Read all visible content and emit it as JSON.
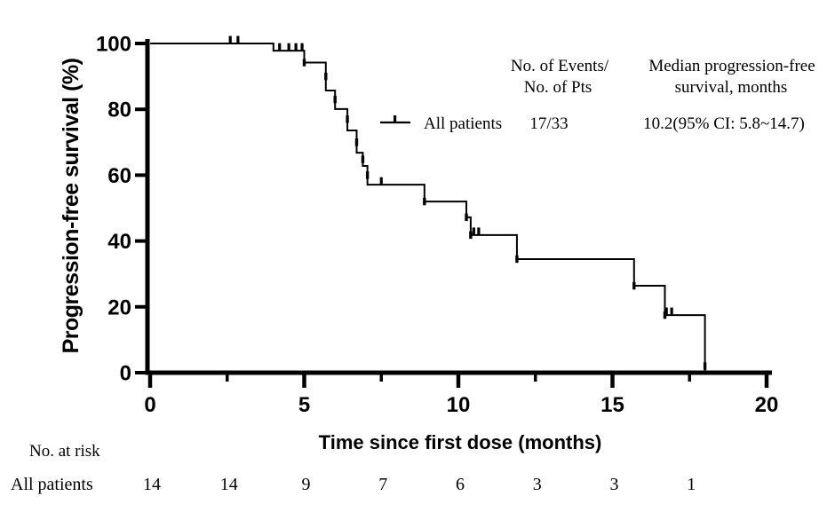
{
  "figure": {
    "background": "#ffffff",
    "ink": "#000000"
  },
  "y_axis": {
    "label": "Progression-free survival (%)",
    "ticks": [
      0,
      20,
      40,
      60,
      80,
      100
    ],
    "range": [
      0,
      100
    ]
  },
  "x_axis": {
    "label": "Time since first dose (months)",
    "ticks": [
      0,
      5,
      10,
      15,
      20
    ],
    "minor_ticks": [
      2.5,
      7.5,
      12.5,
      17.5
    ],
    "range": [
      0,
      20
    ]
  },
  "legend": {
    "col1_header_line1": "No. of Events/",
    "col1_header_line2": "No. of Pts",
    "col2_header_line1": "Median progression-free",
    "col2_header_line2": "survival, months",
    "series_label": "All patients",
    "events_over_pts": "17/33",
    "median_pfs": "10.2(95% CI: 5.8~14.7)"
  },
  "risk_table": {
    "title": "No. at risk",
    "row_label": "All patients",
    "times": [
      0,
      2.5,
      5,
      7.5,
      10,
      12.5,
      15,
      17.5
    ],
    "values": [
      "14",
      "14",
      "9",
      "7",
      "6",
      "3",
      "3",
      "1"
    ]
  },
  "chart_data": {
    "type": "line",
    "subtype": "kaplan-meier-step",
    "title": "",
    "xlabel": "Time since first dose (months)",
    "ylabel": "Progression-free survival (%)",
    "xlim": [
      0,
      20
    ],
    "ylim": [
      0,
      100
    ],
    "grid": false,
    "legend_position": "upper-right",
    "series": [
      {
        "name": "All patients",
        "events_over_pts": "17/33",
        "median_months": 10.2,
        "ci95": [
          5.8,
          14.7
        ],
        "km_steps": [
          [
            0,
            100
          ],
          [
            4.0,
            97.8
          ],
          [
            5.0,
            94.2
          ],
          [
            5.7,
            85.7
          ],
          [
            6.0,
            80.1
          ],
          [
            6.4,
            73.6
          ],
          [
            6.7,
            66.8
          ],
          [
            6.9,
            62.8
          ],
          [
            7.05,
            57.1
          ],
          [
            8.9,
            52.0
          ],
          [
            10.26,
            47.2
          ],
          [
            10.4,
            41.8
          ],
          [
            11.9,
            34.5
          ],
          [
            15.7,
            26.4
          ],
          [
            16.7,
            17.5
          ],
          [
            18.0,
            0
          ]
        ],
        "censor_ticks": [
          [
            2.6,
            100
          ],
          [
            2.85,
            100
          ],
          [
            4.2,
            97.8
          ],
          [
            4.5,
            97.8
          ],
          [
            4.73,
            97.8
          ],
          [
            4.93,
            97.8
          ],
          [
            7.5,
            57.1
          ],
          [
            10.5,
            41.8
          ],
          [
            10.66,
            41.8
          ],
          [
            16.75,
            17.5
          ],
          [
            16.92,
            17.5
          ]
        ],
        "corner_marks": [
          [
            5.0,
            94.2
          ],
          [
            5.7,
            90.0
          ],
          [
            6.0,
            83.0
          ],
          [
            6.4,
            77.0
          ],
          [
            6.7,
            70.0
          ],
          [
            6.9,
            64.8
          ],
          [
            7.05,
            60.0
          ],
          [
            8.9,
            52.0
          ],
          [
            10.26,
            47.2
          ],
          [
            10.4,
            41.8
          ],
          [
            11.9,
            34.5
          ],
          [
            15.7,
            26.4
          ],
          [
            16.7,
            17.5
          ],
          [
            18.0,
            2.0
          ]
        ]
      }
    ]
  }
}
